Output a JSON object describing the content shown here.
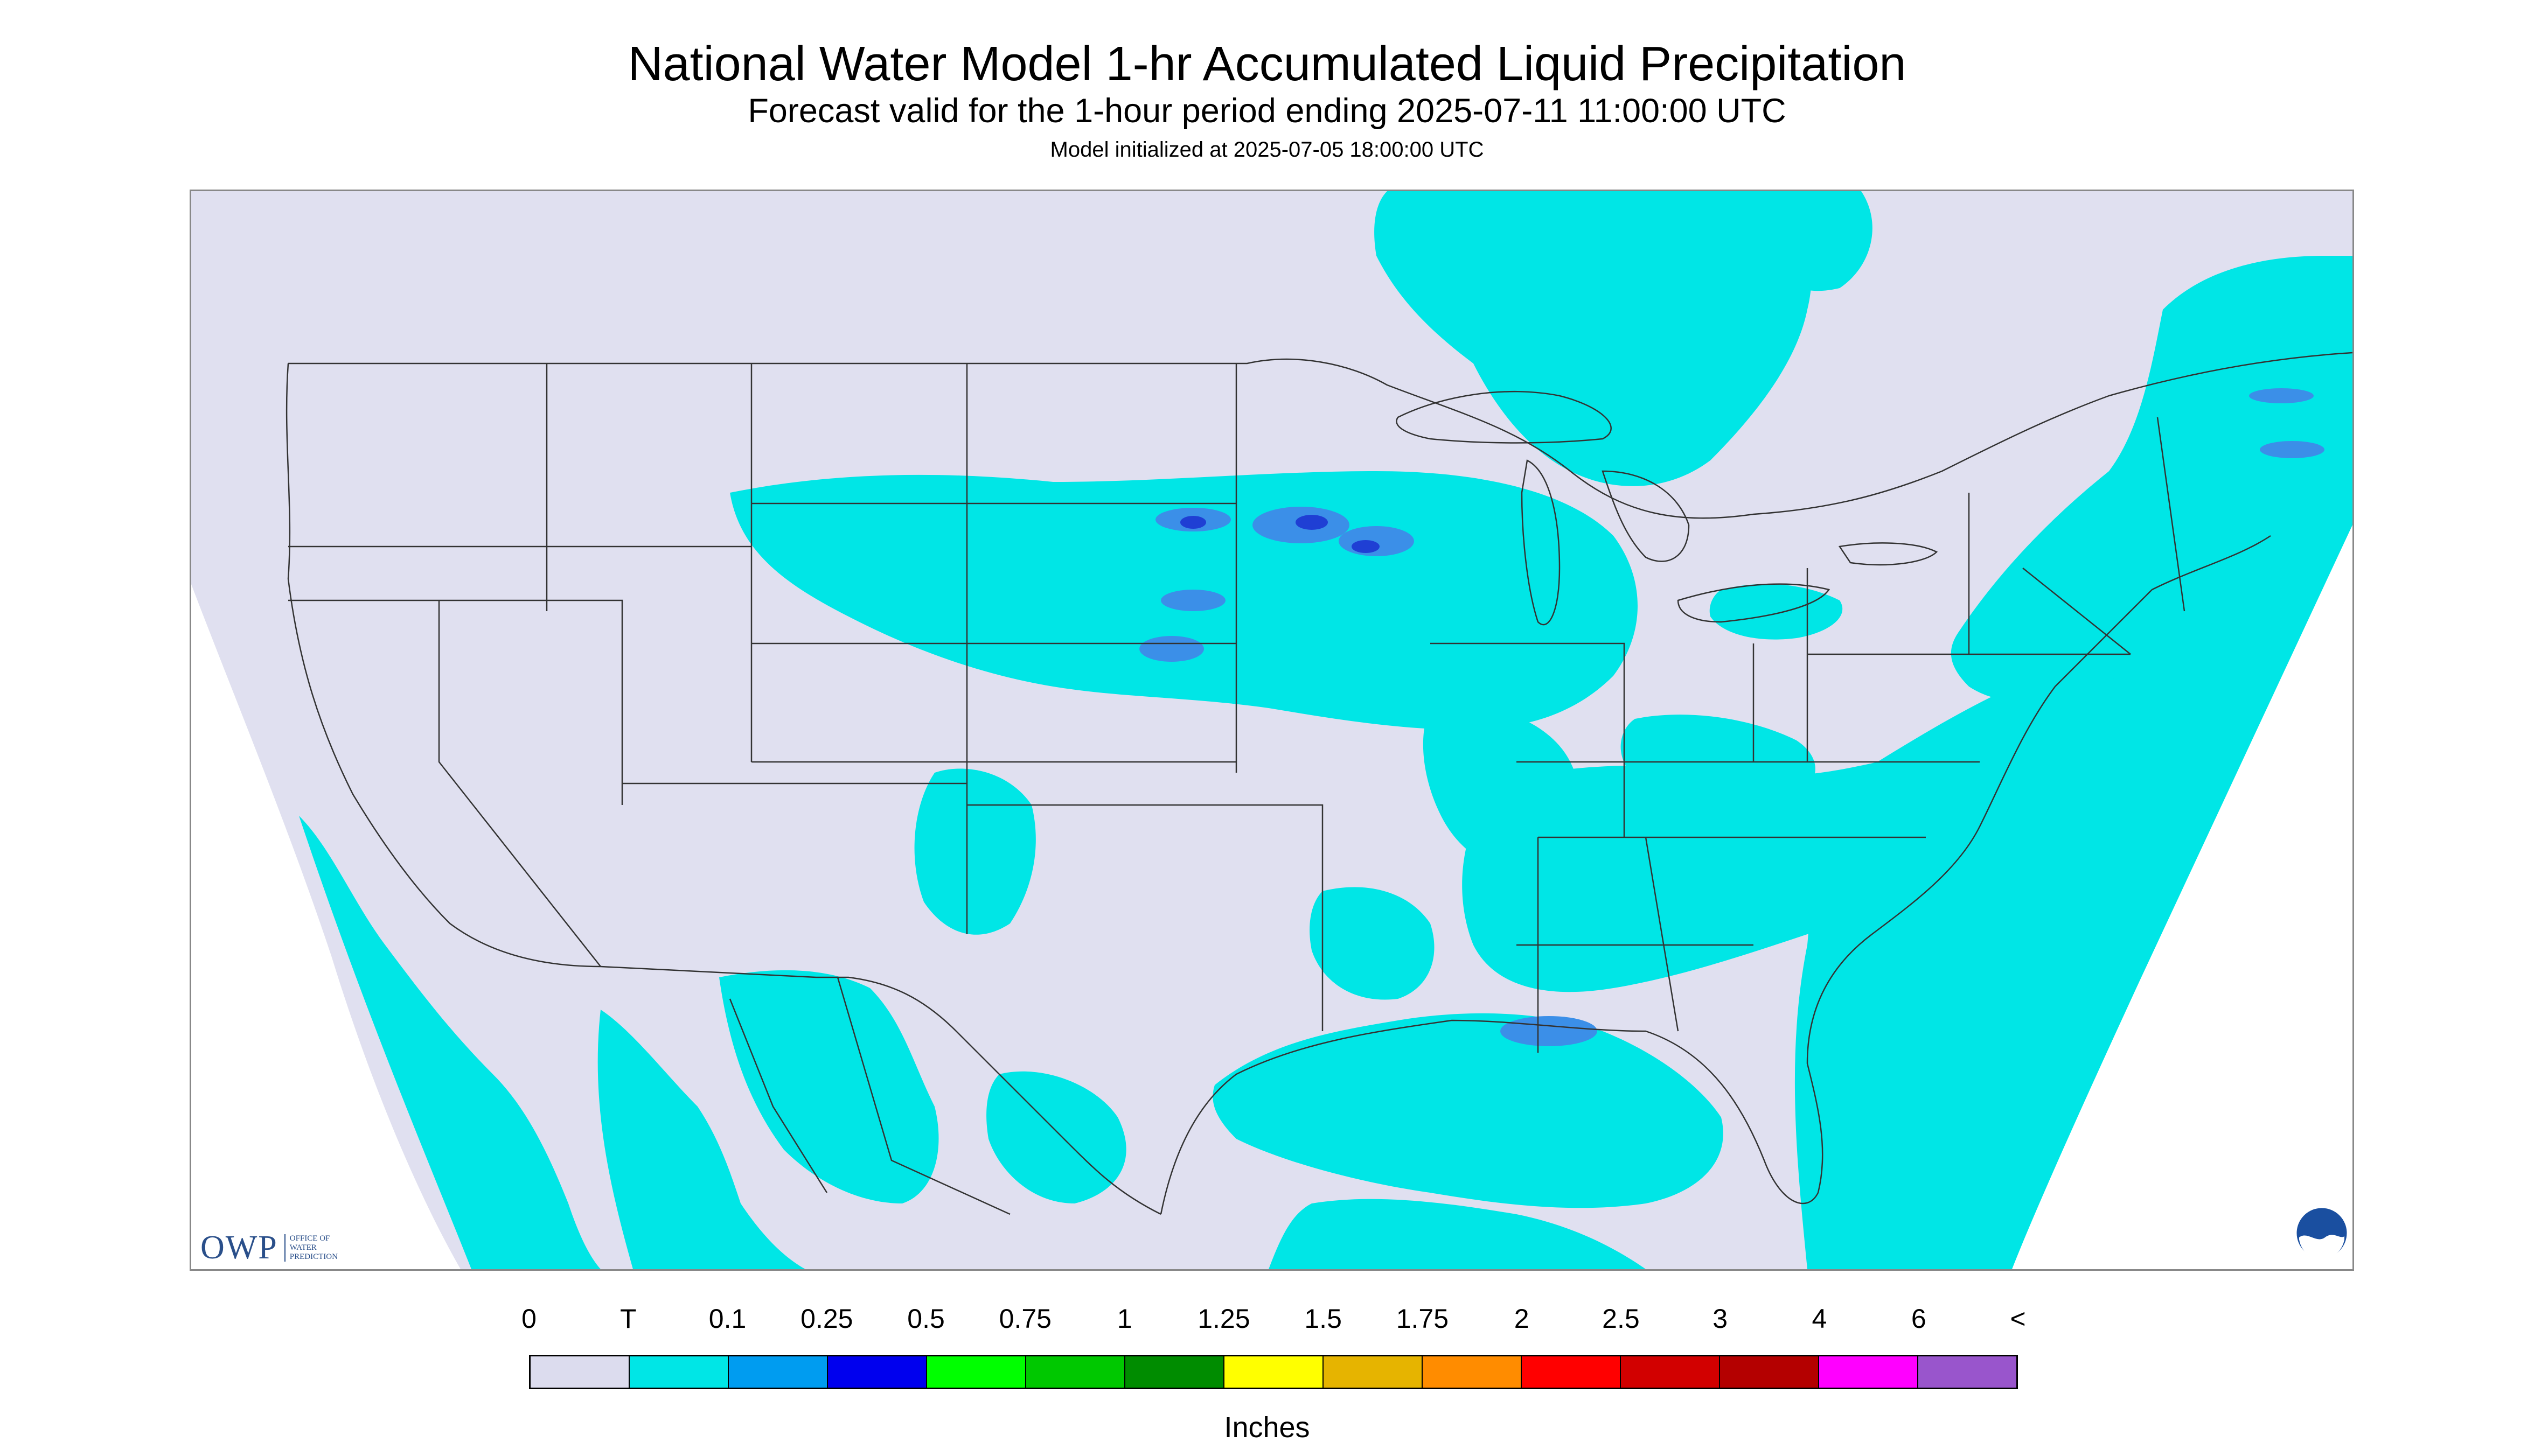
{
  "titles": {
    "main": "National Water Model 1-hr Accumulated Liquid Precipitation",
    "forecast": "Forecast valid for the 1-hour period ending 2025-07-11 11:00:00 UTC",
    "init": "Model initialized at 2025-07-05 18:00:00 UTC"
  },
  "legend": {
    "labels": [
      "0",
      "T",
      "0.1",
      "0.25",
      "0.5",
      "0.75",
      "1",
      "1.25",
      "1.5",
      "1.75",
      "2",
      "2.5",
      "3",
      "4",
      "6",
      "<"
    ],
    "colors": [
      "#dcdcee",
      "#00e6e6",
      "#009cf0",
      "#0000ee",
      "#00ff00",
      "#00c800",
      "#008c00",
      "#ffff00",
      "#e6b400",
      "#ff8c00",
      "#ff0000",
      "#d20000",
      "#b40000",
      "#ff00ff",
      "#9955cc"
    ],
    "units": "Inches"
  },
  "map_colors": {
    "background": "#e0e0f0",
    "outside": "#ffffff",
    "light_precip": "#00e6e6",
    "moderate_precip": "#3b8fe8",
    "heavy_precip": "#1f3fd4",
    "boundaries": "#333333"
  },
  "logos": {
    "owp_mark": "OWP",
    "owp_text": [
      "OFFICE OF",
      "WATER",
      "PREDICTION"
    ],
    "noaa_icon": "noaa-logo-icon"
  }
}
